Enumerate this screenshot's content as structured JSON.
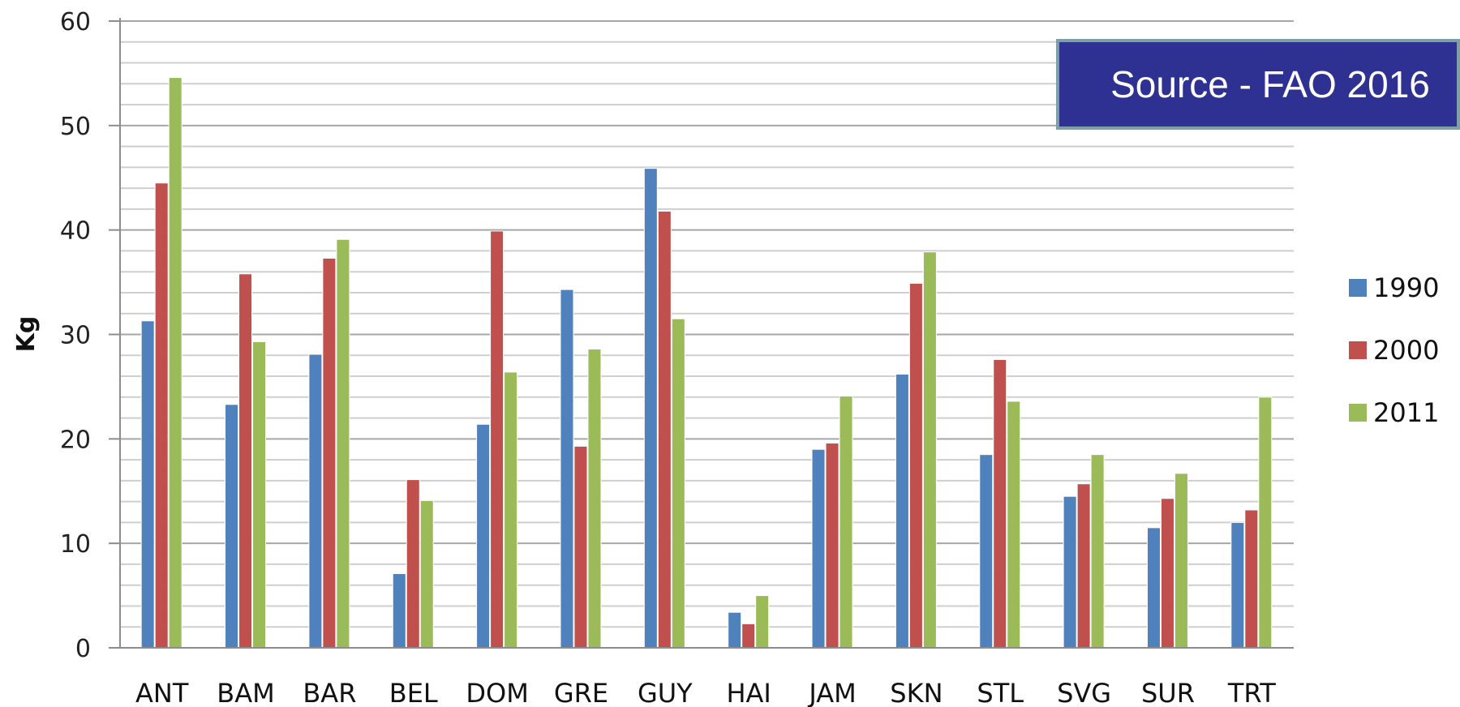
{
  "chart_data": {
    "type": "bar",
    "title": "",
    "xlabel": "",
    "ylabel": "Kg",
    "ylim": [
      0,
      60
    ],
    "yticks": [
      "0",
      "10",
      "20",
      "30",
      "40",
      "50",
      "60"
    ],
    "grid": true,
    "legend_position": "right",
    "categories": [
      "ANT",
      "BAM",
      "BAR",
      "BEL",
      "DOM",
      "GRE",
      "GUY",
      "HAI",
      "JAM",
      "SKN",
      "STL",
      "SVG",
      "SUR",
      "TRT"
    ],
    "series": [
      {
        "name": "1990",
        "color": "#4f81bd",
        "values": [
          31.3,
          23.3,
          28.1,
          7.1,
          21.4,
          34.3,
          45.9,
          3.4,
          19.0,
          26.2,
          18.5,
          14.5,
          11.5,
          12.0
        ]
      },
      {
        "name": "2000",
        "color": "#c0504d",
        "values": [
          44.5,
          35.8,
          37.3,
          16.1,
          39.9,
          19.3,
          41.8,
          2.3,
          19.6,
          34.9,
          27.6,
          15.7,
          14.3,
          13.2
        ]
      },
      {
        "name": "2011",
        "color": "#9bbb59",
        "values": [
          54.6,
          29.3,
          39.1,
          14.1,
          26.4,
          28.6,
          31.5,
          5.0,
          24.1,
          37.9,
          23.6,
          18.5,
          16.7,
          24.0
        ]
      }
    ],
    "annotation": "Source - FAO 2016"
  }
}
